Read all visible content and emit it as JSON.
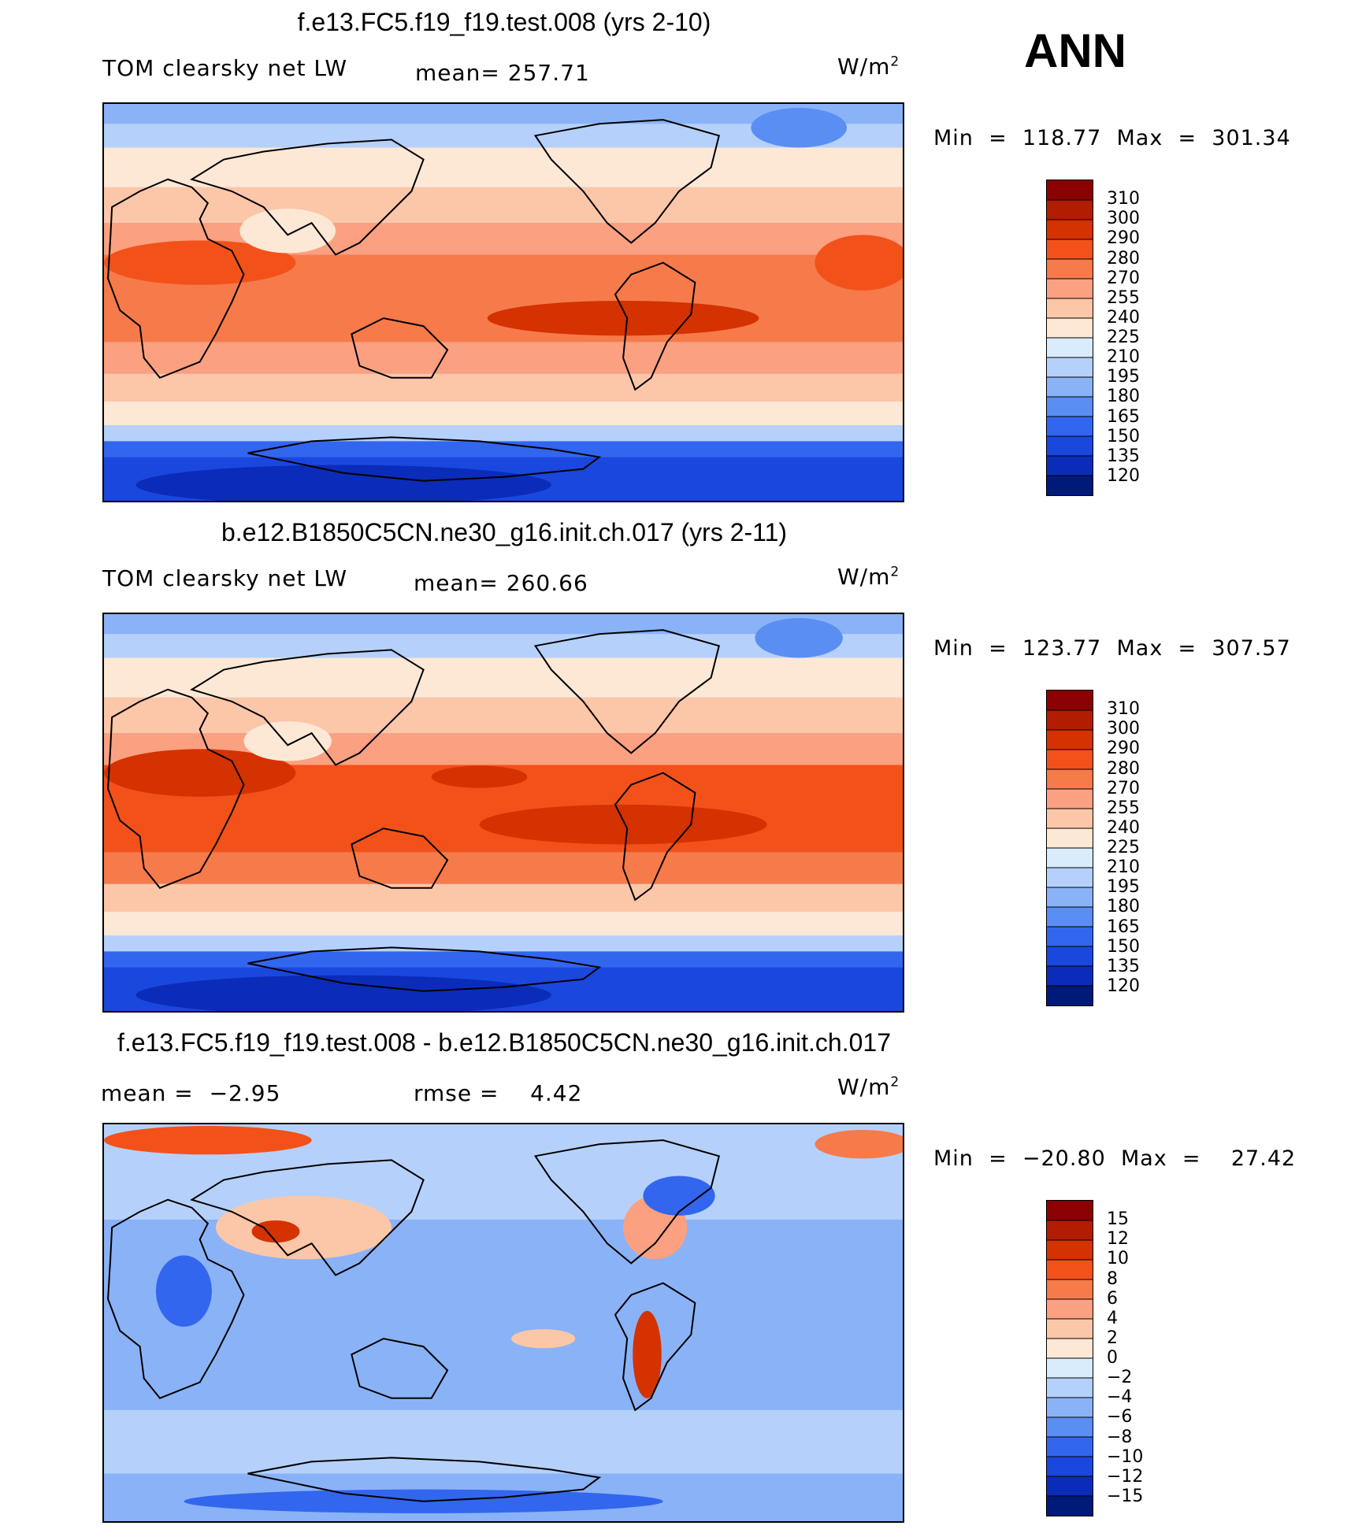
{
  "season": "ANN",
  "chart_data": [
    {
      "type": "heatmap",
      "title": "f.e13.FC5.f19_f19.test.008 (yrs 2-10)",
      "variable": "TOM clearsky net LW",
      "units": "W/m",
      "units_exp": "2",
      "stat_label": "mean=",
      "stat_value": "257.71",
      "minmax": "Min  =  118.77  Max  =  301.34",
      "min": 118.77,
      "max": 301.34,
      "levels": [
        "310",
        "300",
        "290",
        "280",
        "270",
        "255",
        "240",
        "225",
        "210",
        "195",
        "180",
        "165",
        "150",
        "135",
        "120"
      ],
      "colors": [
        "#8b0000",
        "#b21c00",
        "#d43200",
        "#f2521a",
        "#f77a4a",
        "#fba080",
        "#fcc6a8",
        "#fde8d6",
        "#d9ecfb",
        "#b5d1fb",
        "#8ab2f7",
        "#5b8ef2",
        "#3366ee",
        "#1a47dd",
        "#0a2cb8",
        "#001a7a"
      ]
    },
    {
      "type": "heatmap",
      "title": "b.e12.B1850C5CN.ne30_g16.init.ch.017 (yrs 2-11)",
      "variable": "TOM clearsky net LW",
      "units": "W/m",
      "units_exp": "2",
      "stat_label": "mean=",
      "stat_value": "260.66",
      "minmax": "Min  =  123.77  Max  =  307.57",
      "min": 123.77,
      "max": 307.57,
      "levels": [
        "310",
        "300",
        "290",
        "280",
        "270",
        "255",
        "240",
        "225",
        "210",
        "195",
        "180",
        "165",
        "150",
        "135",
        "120"
      ],
      "colors": [
        "#8b0000",
        "#b21c00",
        "#d43200",
        "#f2521a",
        "#f77a4a",
        "#fba080",
        "#fcc6a8",
        "#fde8d6",
        "#d9ecfb",
        "#b5d1fb",
        "#8ab2f7",
        "#5b8ef2",
        "#3366ee",
        "#1a47dd",
        "#0a2cb8",
        "#001a7a"
      ]
    },
    {
      "type": "heatmap",
      "title": "f.e13.FC5.f19_f19.test.008 - b.e12.B1850C5CN.ne30_g16.init.ch.017",
      "units": "W/m",
      "units_exp": "2",
      "mean_label": "mean  =",
      "mean_value": "−2.95",
      "rmse_label": "rmse  =",
      "rmse_value": "4.42",
      "minmax": "Min  =  −20.80  Max  =    27.42",
      "min": -20.8,
      "max": 27.42,
      "levels": [
        "15",
        "12",
        "10",
        "8",
        "6",
        "4",
        "2",
        "0",
        "−2",
        "−4",
        "−6",
        "−8",
        "−10",
        "−12",
        "−15"
      ],
      "colors": [
        "#8b0000",
        "#b21c00",
        "#d43200",
        "#f2521a",
        "#f77a4a",
        "#fba080",
        "#fcc6a8",
        "#fde8d6",
        "#d9ecfb",
        "#b5d1fb",
        "#8ab2f7",
        "#5b8ef2",
        "#3366ee",
        "#1a47dd",
        "#0a2cb8",
        "#001a7a"
      ]
    }
  ]
}
